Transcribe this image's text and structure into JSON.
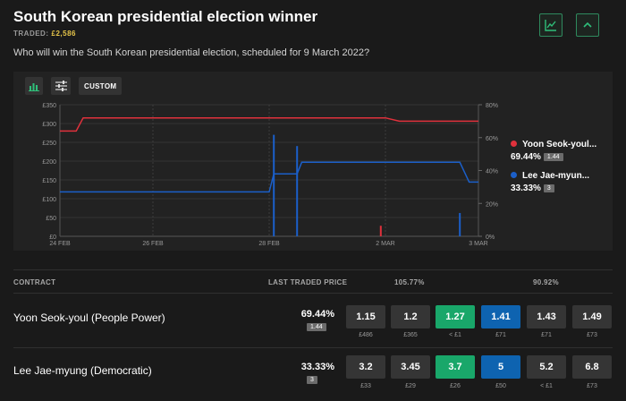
{
  "header": {
    "title": "South Korean presidential election winner",
    "traded_label": "TRADED:",
    "traded_amount": "£2,586",
    "question": "Who will win the South Korean presidential election, scheduled for 9 March 2022?",
    "chart_toggle_icon": "line-chart-icon",
    "collapse_icon": "chevron-up-icon"
  },
  "chart_toolbar": {
    "bar_icon": "bar-chart-icon",
    "settings_icon": "sliders-icon",
    "custom_label": "CUSTOM"
  },
  "chart_data": {
    "type": "line",
    "x_ticks": [
      "24 FEB",
      "26 FEB",
      "28 FEB",
      "2 MAR",
      "3 MAR"
    ],
    "y_left_ticks": [
      "£350",
      "£300",
      "£250",
      "£200",
      "£150",
      "£100",
      "£50",
      "£0"
    ],
    "y_right_ticks": [
      "80%",
      "60%",
      "40%",
      "20%",
      "0%"
    ],
    "ylim_left": [
      0,
      350
    ],
    "ylim_right": [
      0,
      80
    ],
    "grid": true,
    "legend_position": "right",
    "colors": {
      "yoon": "#e0313c",
      "lee": "#1b5fc9"
    },
    "series": [
      {
        "name": "Yoon Seok-youl",
        "color": "#e0313c",
        "points": [
          [
            0,
            64
          ],
          [
            0.35,
            64
          ],
          [
            0.5,
            72
          ],
          [
            7.0,
            72
          ],
          [
            7.3,
            70
          ],
          [
            9.0,
            70
          ]
        ]
      },
      {
        "name": "Lee Jae-myung",
        "color": "#1b5fc9",
        "points": [
          [
            0,
            27
          ],
          [
            4.5,
            27
          ],
          [
            4.6,
            38
          ],
          [
            5.1,
            38
          ],
          [
            5.2,
            45
          ],
          [
            8.6,
            45
          ],
          [
            8.8,
            33
          ],
          [
            9.0,
            33
          ]
        ]
      }
    ],
    "volume_bars": [
      {
        "x": 4.6,
        "value": 270,
        "series": "Lee Jae-myung",
        "color": "#1b5fc9"
      },
      {
        "x": 5.1,
        "value": 240,
        "series": "Lee Jae-myung",
        "color": "#1b5fc9"
      },
      {
        "x": 6.9,
        "value": 28,
        "series": "Yoon Seok-youl",
        "color": "#e0313c"
      },
      {
        "x": 8.6,
        "value": 62,
        "series": "Lee Jae-myung",
        "color": "#1b5fc9"
      }
    ]
  },
  "legend": [
    {
      "name": "Yoon Seok-youl...",
      "value": "69.44%",
      "badge": "1.44"
    },
    {
      "name": "Lee Jae-myun...",
      "value": "33.33%",
      "badge": "3"
    }
  ],
  "table": {
    "headers": {
      "contract": "CONTRACT",
      "last_traded": "LAST TRADED PRICE",
      "back_book": "105.77%",
      "lay_book": "90.92%"
    },
    "rows": [
      {
        "name": "Yoon Seok-youl (People Power)",
        "pct": "69.44%",
        "badge": "1.44",
        "prices": [
          "1.15",
          "1.2",
          "1.27",
          "1.41",
          "1.43",
          "1.49"
        ],
        "amounts": [
          "£486",
          "£365",
          "< £1",
          "£71",
          "£71",
          "£73"
        ]
      },
      {
        "name": "Lee Jae-myung (Democratic)",
        "pct": "33.33%",
        "badge": "3",
        "prices": [
          "3.2",
          "3.45",
          "3.7",
          "5",
          "5.2",
          "6.8"
        ],
        "amounts": [
          "£33",
          "£29",
          "£26",
          "£50",
          "< £1",
          "£73"
        ]
      }
    ]
  }
}
